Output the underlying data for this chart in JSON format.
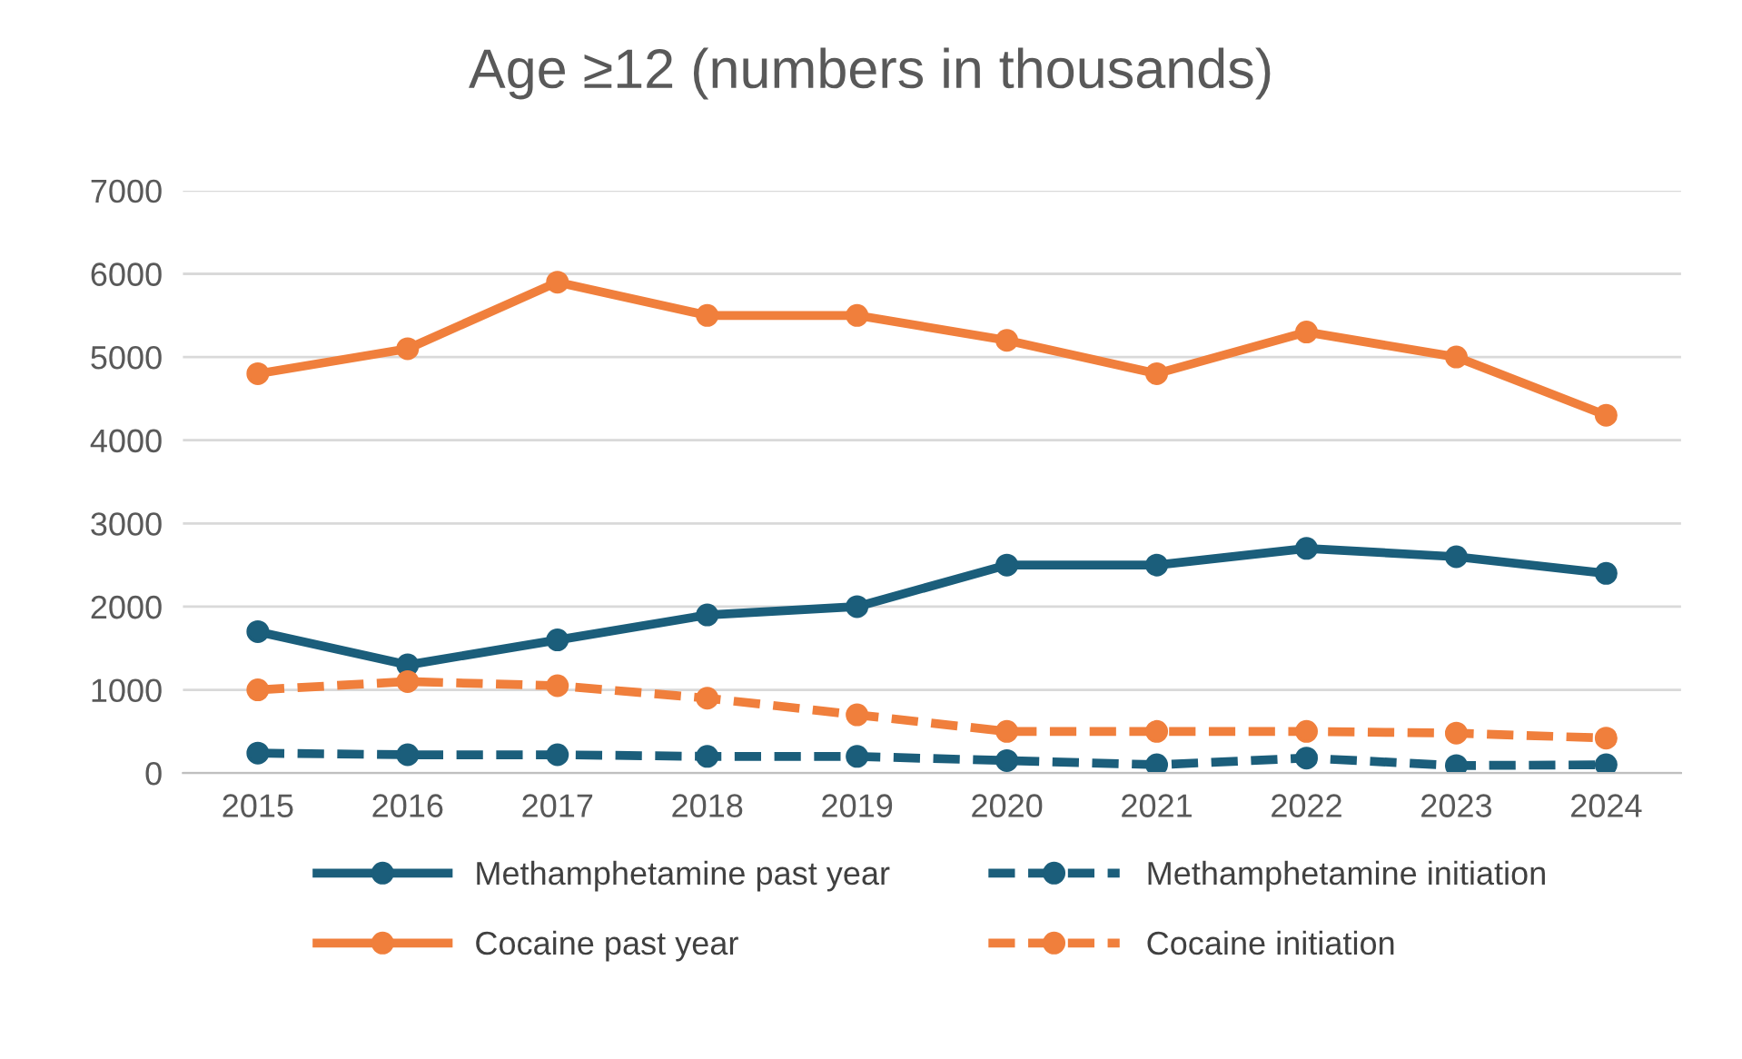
{
  "chart_data": {
    "type": "line",
    "title": "Age ≥12 (numbers in thousands)",
    "categories": [
      "2015",
      "2016",
      "2017",
      "2018",
      "2019",
      "2020",
      "2021",
      "2022",
      "2023",
      "2024"
    ],
    "series": [
      {
        "name": "Methamphetamine past year",
        "color": "#1b5e7b",
        "line_style": "solid",
        "values": [
          1700,
          1300,
          1600,
          1900,
          2000,
          2500,
          2500,
          2700,
          2600,
          2400
        ]
      },
      {
        "name": "Cocaine past year",
        "color": "#f07f3c",
        "line_style": "solid",
        "values": [
          4800,
          5100,
          5900,
          5500,
          5500,
          5200,
          4800,
          5300,
          5000,
          4300
        ]
      },
      {
        "name": "Methamphetamine initiation",
        "color": "#1b5e7b",
        "line_style": "dashed",
        "values": [
          240,
          220,
          220,
          200,
          200,
          150,
          100,
          180,
          90,
          100
        ]
      },
      {
        "name": "Cocaine initiation",
        "color": "#f07f3c",
        "line_style": "dashed",
        "values": [
          1000,
          1100,
          1050,
          900,
          700,
          500,
          500,
          500,
          480,
          420
        ]
      }
    ],
    "ylim": [
      0,
      7000
    ],
    "yticks": [
      0,
      1000,
      2000,
      3000,
      4000,
      5000,
      6000,
      7000
    ],
    "grid": "y",
    "legend": "bottom",
    "marker": "circle"
  }
}
